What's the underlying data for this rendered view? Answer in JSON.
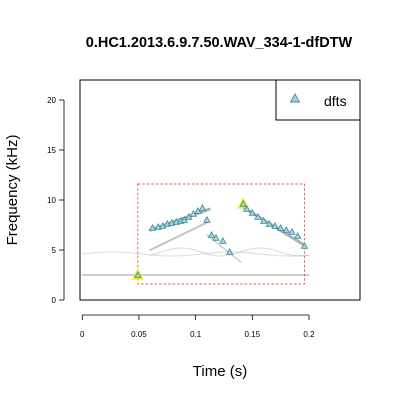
{
  "chart_data": {
    "type": "scatter",
    "title": "0.HC1.2013.6.9.7.50.WAV_334-1-dfDTW",
    "xlabel": "Time (s)",
    "ylabel": "Frequency (kHz)",
    "xlim": [
      -0.002,
      0.245
    ],
    "ylim": [
      0,
      22
    ],
    "x_ticks": [
      0,
      0.05,
      0.1,
      0.15,
      0.2
    ],
    "x_tick_labels": [
      "0",
      "0.05",
      "0.1",
      "0.15",
      "0.2"
    ],
    "y_ticks": [
      0,
      5,
      10,
      15,
      20
    ],
    "y_tick_labels": [
      "0",
      "5",
      "10",
      "15",
      "20"
    ],
    "legend": {
      "position": "top-right",
      "entries": [
        "dfts"
      ]
    },
    "colors": {
      "marker_fill": "#9fd3dd",
      "marker_edge": "#3f8a9a",
      "highlight": "#f2f200",
      "box": "#e4584a",
      "spectrogram": "#6e6e6e"
    },
    "selection_box": {
      "x": [
        0.049,
        0.196
      ],
      "y": [
        1.6,
        11.6
      ]
    },
    "highlight_points": [
      {
        "x": 0.049,
        "y": 2.5
      },
      {
        "x": 0.142,
        "y": 9.6
      }
    ],
    "series": [
      {
        "name": "dfts",
        "x": [
          0.062,
          0.067,
          0.071,
          0.075,
          0.079,
          0.083,
          0.087,
          0.09,
          0.094,
          0.098,
          0.102,
          0.106,
          0.11,
          0.114,
          0.118,
          0.124,
          0.13,
          0.145,
          0.15,
          0.155,
          0.16,
          0.165,
          0.17,
          0.175,
          0.18,
          0.185,
          0.19,
          0.196
        ],
        "y": [
          7.2,
          7.3,
          7.4,
          7.6,
          7.7,
          7.8,
          7.9,
          8.0,
          8.3,
          8.6,
          8.9,
          9.2,
          8.0,
          6.5,
          6.2,
          5.9,
          4.8,
          9.1,
          8.7,
          8.3,
          7.9,
          7.6,
          7.4,
          7.2,
          7.0,
          6.8,
          6.4,
          5.4
        ]
      }
    ]
  }
}
